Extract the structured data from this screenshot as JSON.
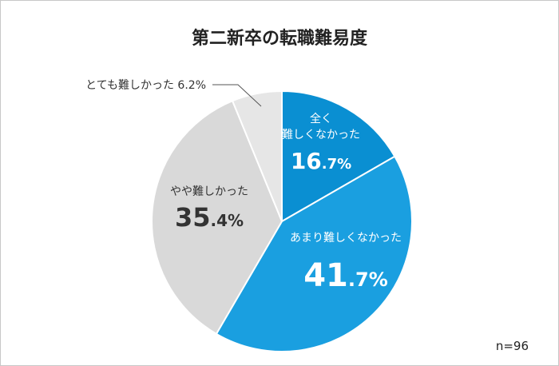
{
  "chart_data": {
    "type": "pie",
    "title": "第二新卒の転職難易度",
    "n_label": "n=96",
    "slices": [
      {
        "key": "zenku",
        "label_lines": [
          "全く",
          "難しくなかった"
        ],
        "value": 16.7,
        "value_big": "16",
        "value_small": ".7%",
        "color": "#0a8fd2"
      },
      {
        "key": "amari",
        "label_lines": [
          "あまり難しくなかった"
        ],
        "value": 41.7,
        "value_big": "41",
        "value_small": ".7%",
        "color": "#1a9fe0"
      },
      {
        "key": "yaya",
        "label_lines": [
          "やや難しかった"
        ],
        "value": 35.4,
        "value_big": "35",
        "value_small": ".4%",
        "color": "#d9d9d9"
      },
      {
        "key": "totemo",
        "label_lines": [
          "とても難しかった 6.2%"
        ],
        "value": 6.2,
        "value_big": "",
        "value_small": "",
        "color": "#e6e6e6"
      }
    ]
  }
}
